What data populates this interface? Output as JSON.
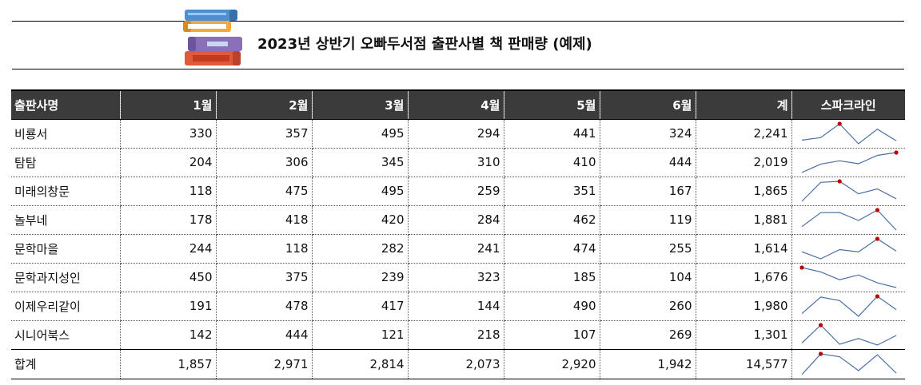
{
  "title": "2023년 상반기 오빠두서점 출판사별 책 판매량 (예제)",
  "icon": "books-stack-icon",
  "colors": {
    "header_bg": "#3b3b3b",
    "sparkline": "#4a6fa5",
    "spark_max_marker": "#c00000"
  },
  "table": {
    "headers": [
      "출판사명",
      "1월",
      "2월",
      "3월",
      "4월",
      "5월",
      "6월",
      "계",
      "스파크라인"
    ],
    "rows": [
      {
        "name": "비룡서",
        "values": [
          330,
          357,
          495,
          294,
          441,
          324
        ],
        "total": "2,241"
      },
      {
        "name": "탐탐",
        "values": [
          204,
          306,
          345,
          310,
          410,
          444
        ],
        "total": "2,019"
      },
      {
        "name": "미래의창문",
        "values": [
          118,
          475,
          495,
          259,
          351,
          167
        ],
        "total": "1,865"
      },
      {
        "name": "놀부네",
        "values": [
          178,
          418,
          420,
          284,
          462,
          119
        ],
        "total": "1,881"
      },
      {
        "name": "문학마을",
        "values": [
          244,
          118,
          282,
          241,
          474,
          255
        ],
        "total": "1,614"
      },
      {
        "name": "문학과지성인",
        "values": [
          450,
          375,
          239,
          323,
          185,
          104
        ],
        "total": "1,676"
      },
      {
        "name": "이제우리같이",
        "values": [
          191,
          478,
          417,
          144,
          490,
          260
        ],
        "total": "1,980"
      },
      {
        "name": "시니어북스",
        "values": [
          142,
          444,
          121,
          218,
          107,
          269
        ],
        "total": "1,301"
      }
    ],
    "footer": {
      "name": "합계",
      "values": [
        "1,857",
        "2,971",
        "2,814",
        "2,073",
        "2,920",
        "1,942"
      ],
      "raw": [
        1857,
        2971,
        2814,
        2073,
        2920,
        1942
      ],
      "total": "14,577"
    }
  }
}
